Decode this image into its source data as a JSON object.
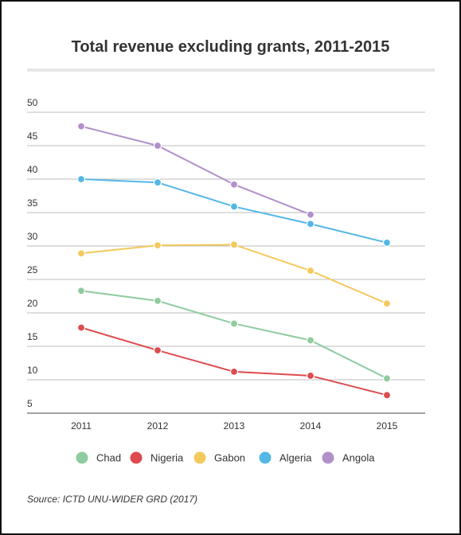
{
  "title": "Total revenue excluding grants, 2011-2015",
  "source": "Source: ICTD UNU-WIDER GRD (2017)",
  "chart_data": {
    "type": "line",
    "title": "Total revenue excluding grants, 2011-2015",
    "xlabel": "",
    "ylabel": "",
    "x": [
      "2011",
      "2012",
      "2013",
      "2014",
      "2015"
    ],
    "yticks": [
      5,
      10,
      15,
      20,
      25,
      30,
      35,
      40,
      45,
      50
    ],
    "ylim": [
      5,
      50
    ],
    "grid": true,
    "legend_position": "bottom",
    "series": [
      {
        "name": "Chad",
        "color": "#8fcc9f",
        "values": [
          23.3,
          21.8,
          18.4,
          15.9,
          10.2
        ]
      },
      {
        "name": "Nigeria",
        "color": "#dd4b4e",
        "values": [
          17.8,
          14.4,
          11.2,
          10.6,
          7.7
        ]
      },
      {
        "name": "Gabon",
        "color": "#f4c95d",
        "values": [
          28.9,
          30.1,
          30.2,
          26.3,
          21.4
        ]
      },
      {
        "name": "Algeria",
        "color": "#54b7e6",
        "values": [
          40.0,
          39.5,
          35.9,
          33.3,
          30.5
        ]
      },
      {
        "name": "Angola",
        "color": "#b190ca",
        "values": [
          47.9,
          45.0,
          39.2,
          34.7,
          null
        ]
      }
    ]
  }
}
